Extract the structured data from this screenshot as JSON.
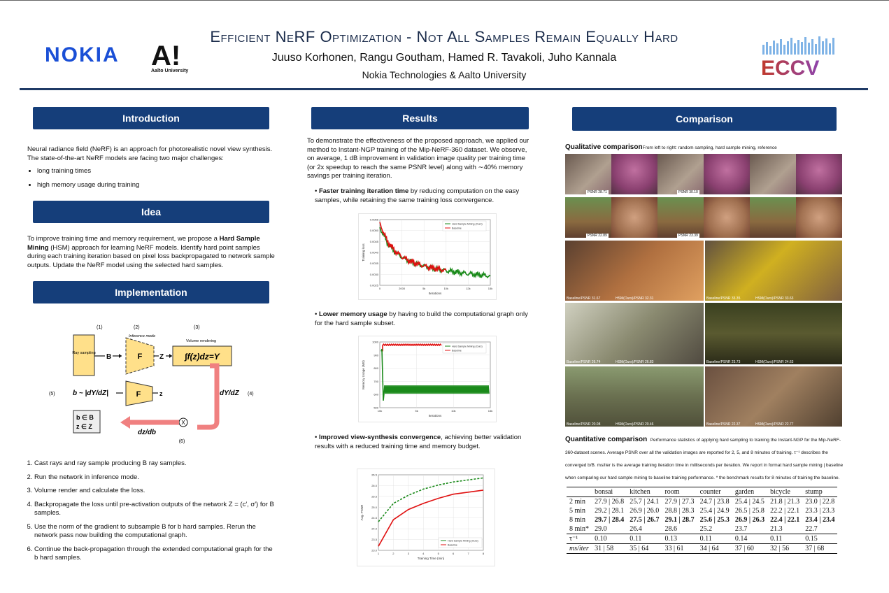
{
  "header": {
    "title": "Efficient NeRF Optimization - Not All Samples Remain Equally Hard",
    "authors": "Juuso Korhonen, Rangu Goutham, Hamed R. Tavakoli, Juho Kannala",
    "affiliation": "Nokia Technologies & Aalto University",
    "logo_nokia": "NOKIA",
    "logo_aalto": "A!",
    "logo_aalto_sub": "Aalto University",
    "logo_eccv": "ECCV"
  },
  "introduction": {
    "heading": "Introduction",
    "body": "Neural radiance field (NeRF) is an approach for photorealistic novel view synthesis. The state-of-the-art NeRF models are facing two major challenges:",
    "bullets": [
      "long training times",
      "high memory usage during training"
    ]
  },
  "idea": {
    "heading": "Idea",
    "body_pre": "To improve training time and memory requirement, we propose a ",
    "body_bold": "Hard Sample Mining",
    "body_post": " (HSM) approach for learning NeRF models. Identify hard point samples during each training iteration based on pixel loss backpropagated to network sample outputs. Update the NeRF model using the selected hard samples."
  },
  "implementation": {
    "heading": "Implementation",
    "diagram": {
      "n1": "(1)",
      "n2": "(2)",
      "n3": "(3)",
      "n4": "(4)",
      "n5": "(5)",
      "n6": "(6)",
      "inference_mode": "Inference mode",
      "volume_rendering": "Volume rendering",
      "ray_sampling": "Ray sampling",
      "b": "B",
      "f": "F",
      "z": "Z",
      "z_small": "z",
      "integral": "∫f(z)dz=Y",
      "dydz": "dY/dZ",
      "bsample": "b ~ |dY/dZ|",
      "bset": "b ∈ B",
      "zset": "z ∈ Z",
      "dzdb": "dz/db",
      "x": "X"
    },
    "steps": [
      "Cast rays and ray sample producing B ray samples.",
      "Run the network in inference mode.",
      "Volume render and calculate the loss.",
      "Backpropagate the loss until pre-activation outputs of the network Z = (c′, σ′) for B samples.",
      "Use the norm of the gradient to subsample B for b hard samples. Rerun the network pass now building the computational graph.",
      "Continue the back-propagation through the extended computational graph for the b hard samples."
    ]
  },
  "results": {
    "heading": "Results",
    "body": "To demonstrate the effectiveness of the proposed approach, we applied our method to Instant-NGP training of the Mip-NeRF-360 dataset. We observe, on average, 1 dB improvement in validation image quality per training time (or 2x speedup to reach the same PSNR level) along with ∼40% memory savings per training iteration.",
    "bullet1_bold": "Faster training iteration time",
    "bullet1_rest": " by reducing computation on the easy samples, while retaining the same training loss convergence.",
    "bullet2_bold": "Lower memory usage",
    "bullet2_rest": " by having to build the computational graph only for the hard sample subset.",
    "bullet3_bold": "Improved view-synthesis convergence",
    "bullet3_rest": ", achieving better validation results with a reduced training time and memory budget."
  },
  "comparison": {
    "heading": "Comparison",
    "qual_title": "Qualitative comparison",
    "qual_caption": "From left to right: random sampling, hard sample mining, reference",
    "psnr_labels": [
      "PSNR 28.71",
      "PSNR 30.10",
      "PSNR 22.89",
      "PSNR 23.39"
    ],
    "grid_labels": [
      "Baseline/PSNR 31.67",
      "HSM(Ours)/PSNR 32.31",
      "Baseline/PSNR 33.35",
      "HSM(Ours)/PSNR 33.63",
      "Baseline/PSNR 26.74",
      "HSM(Ours)/PSNR 26.83",
      "Baseline/PSNR 23.73",
      "HSM(Ours)/PSNR 24.63",
      "Baseline/PSNR 20.08",
      "HSM(Ours)/PSNR 20.46",
      "Baseline/PSNR 22.37",
      "HSM(Ours)/PSNR 22.77"
    ],
    "quant_title": "Quantitative comparison",
    "quant_caption": "Performance statistics of applying hard sampling to training the Instant-NGP for the Mip-NeRF-360-dataset scenes. Average PSNR over all the validation images are reported for 2, 5, and 8 minutes of training. τ⁻¹ describes the converged b/B. ms/iter is the average training iteration time in milliseconds per iteration. We report in format hard sample mining | baseline when comparing our hard sample mining to baseline training performance. * the benchmark results for 8 minutes of training the baseline.",
    "table": {
      "columns": [
        "",
        "bonsai",
        "kitchen",
        "room",
        "counter",
        "garden",
        "bicycle",
        "stump"
      ],
      "rows": [
        [
          "2 min",
          "27.9 | 26.8",
          "25.7 | 24.1",
          "27.9 | 27.3",
          "24.7 | 23.8",
          "25.4 | 24.5",
          "21.8 | 21.3",
          "23.0 | 22.8"
        ],
        [
          "5 min",
          "29.2 | 28.1",
          "26.9 | 26.0",
          "28.8 | 28.3",
          "25.4 | 24.9",
          "26.5 | 25.8",
          "22.2 | 22.1",
          "23.3 | 23.3"
        ],
        [
          "8 min",
          "29.7 | 28.4",
          "27.5 | 26.7",
          "29.1 | 28.7",
          "25.6 | 25.3",
          "26.9 | 26.3",
          "22.4 | 22.1",
          "23.4 | 23.4"
        ],
        [
          "8 min*",
          "29.0",
          "26.4",
          "28.6",
          "25.2",
          "23.7",
          "21.3",
          "22.7"
        ],
        [
          "τ⁻¹",
          "0.10",
          "0.11",
          "0.13",
          "0.11",
          "0.14",
          "0.11",
          "0.15"
        ],
        [
          "ms/iter",
          "31 | 58",
          "35 | 64",
          "33 | 61",
          "34 | 64",
          "37 | 60",
          "32 | 56",
          "37 | 68"
        ]
      ]
    }
  },
  "chart_data": [
    {
      "type": "line",
      "title": "",
      "xlabel": "Iterations",
      "ylabel": "Training loss",
      "x_ticks": [
        "0",
        "2000",
        "5k",
        "10k",
        "12k",
        "15k"
      ],
      "y_ticks": [
        "0.0025",
        "0.0030",
        "0.0035",
        "0.0040",
        "0.0045",
        "0.0050",
        "0.0055"
      ],
      "ylim": [
        0.0022,
        0.0056
      ],
      "legend": "top-right",
      "series": [
        {
          "name": "Hard Sample Mining (Ours)",
          "color": "#1a8a1a",
          "x": [
            0,
            1000,
            2000,
            3000,
            4000,
            5000,
            6000,
            7000,
            8000,
            9000,
            10000,
            11000,
            12000,
            13000,
            14000,
            15000
          ],
          "y": [
            0.0052,
            0.0044,
            0.00395,
            0.00365,
            0.00345,
            0.0033,
            0.0032,
            0.0031,
            0.00302,
            0.00296,
            0.0029,
            0.00285,
            0.0028,
            0.00276,
            0.00272,
            0.00268
          ]
        },
        {
          "name": "Baseline",
          "color": "#e01010",
          "x": [
            0,
            1000,
            2000,
            3000,
            4000,
            5000,
            6000,
            7000,
            8000,
            9000
          ],
          "y": [
            0.0054,
            0.0045,
            0.004,
            0.00368,
            0.00347,
            0.00332,
            0.0032,
            0.00311,
            0.00303,
            0.00297
          ]
        }
      ]
    },
    {
      "type": "line",
      "title": "",
      "xlabel": "Iterations",
      "ylabel": "Memory Usage (MB)",
      "x_ticks": [
        "10k",
        "5k",
        "10k",
        "15k"
      ],
      "y_ticks": [
        "500",
        "600",
        "700",
        "800",
        "900",
        "1000"
      ],
      "ylim": [
        480,
        1040
      ],
      "legend": "top-right",
      "series": [
        {
          "name": "Hard Sample Mining (Ours)",
          "color": "#1a8a1a"
        },
        {
          "name": "Baseline",
          "color": "#e01010"
        }
      ]
    },
    {
      "type": "line",
      "title": "",
      "xlabel": "Training Time (min)",
      "ylabel": "Avg. PSNR",
      "x_ticks": [
        "1",
        "2",
        "3",
        "4",
        "5",
        "6",
        "7",
        "8"
      ],
      "y_ticks": [
        "23.0",
        "23.5",
        "24.0",
        "24.5",
        "25.0",
        "25.5",
        "26.0",
        "26.5"
      ],
      "ylim": [
        22.9,
        26.6
      ],
      "legend": "bottom-right",
      "series": [
        {
          "name": "Hard Sample Mining (Ours)",
          "color": "#1a8a1a",
          "x": [
            1,
            2,
            3,
            4,
            5,
            6,
            7,
            8
          ],
          "y": [
            24.3,
            25.2,
            25.6,
            25.9,
            26.1,
            26.25,
            26.35,
            26.45
          ]
        },
        {
          "name": "Baseline",
          "color": "#e01010",
          "x": [
            1,
            2,
            3,
            4,
            5,
            6,
            7,
            8
          ],
          "y": [
            23.1,
            24.4,
            24.9,
            25.2,
            25.45,
            25.65,
            25.75,
            25.85
          ]
        }
      ]
    }
  ]
}
